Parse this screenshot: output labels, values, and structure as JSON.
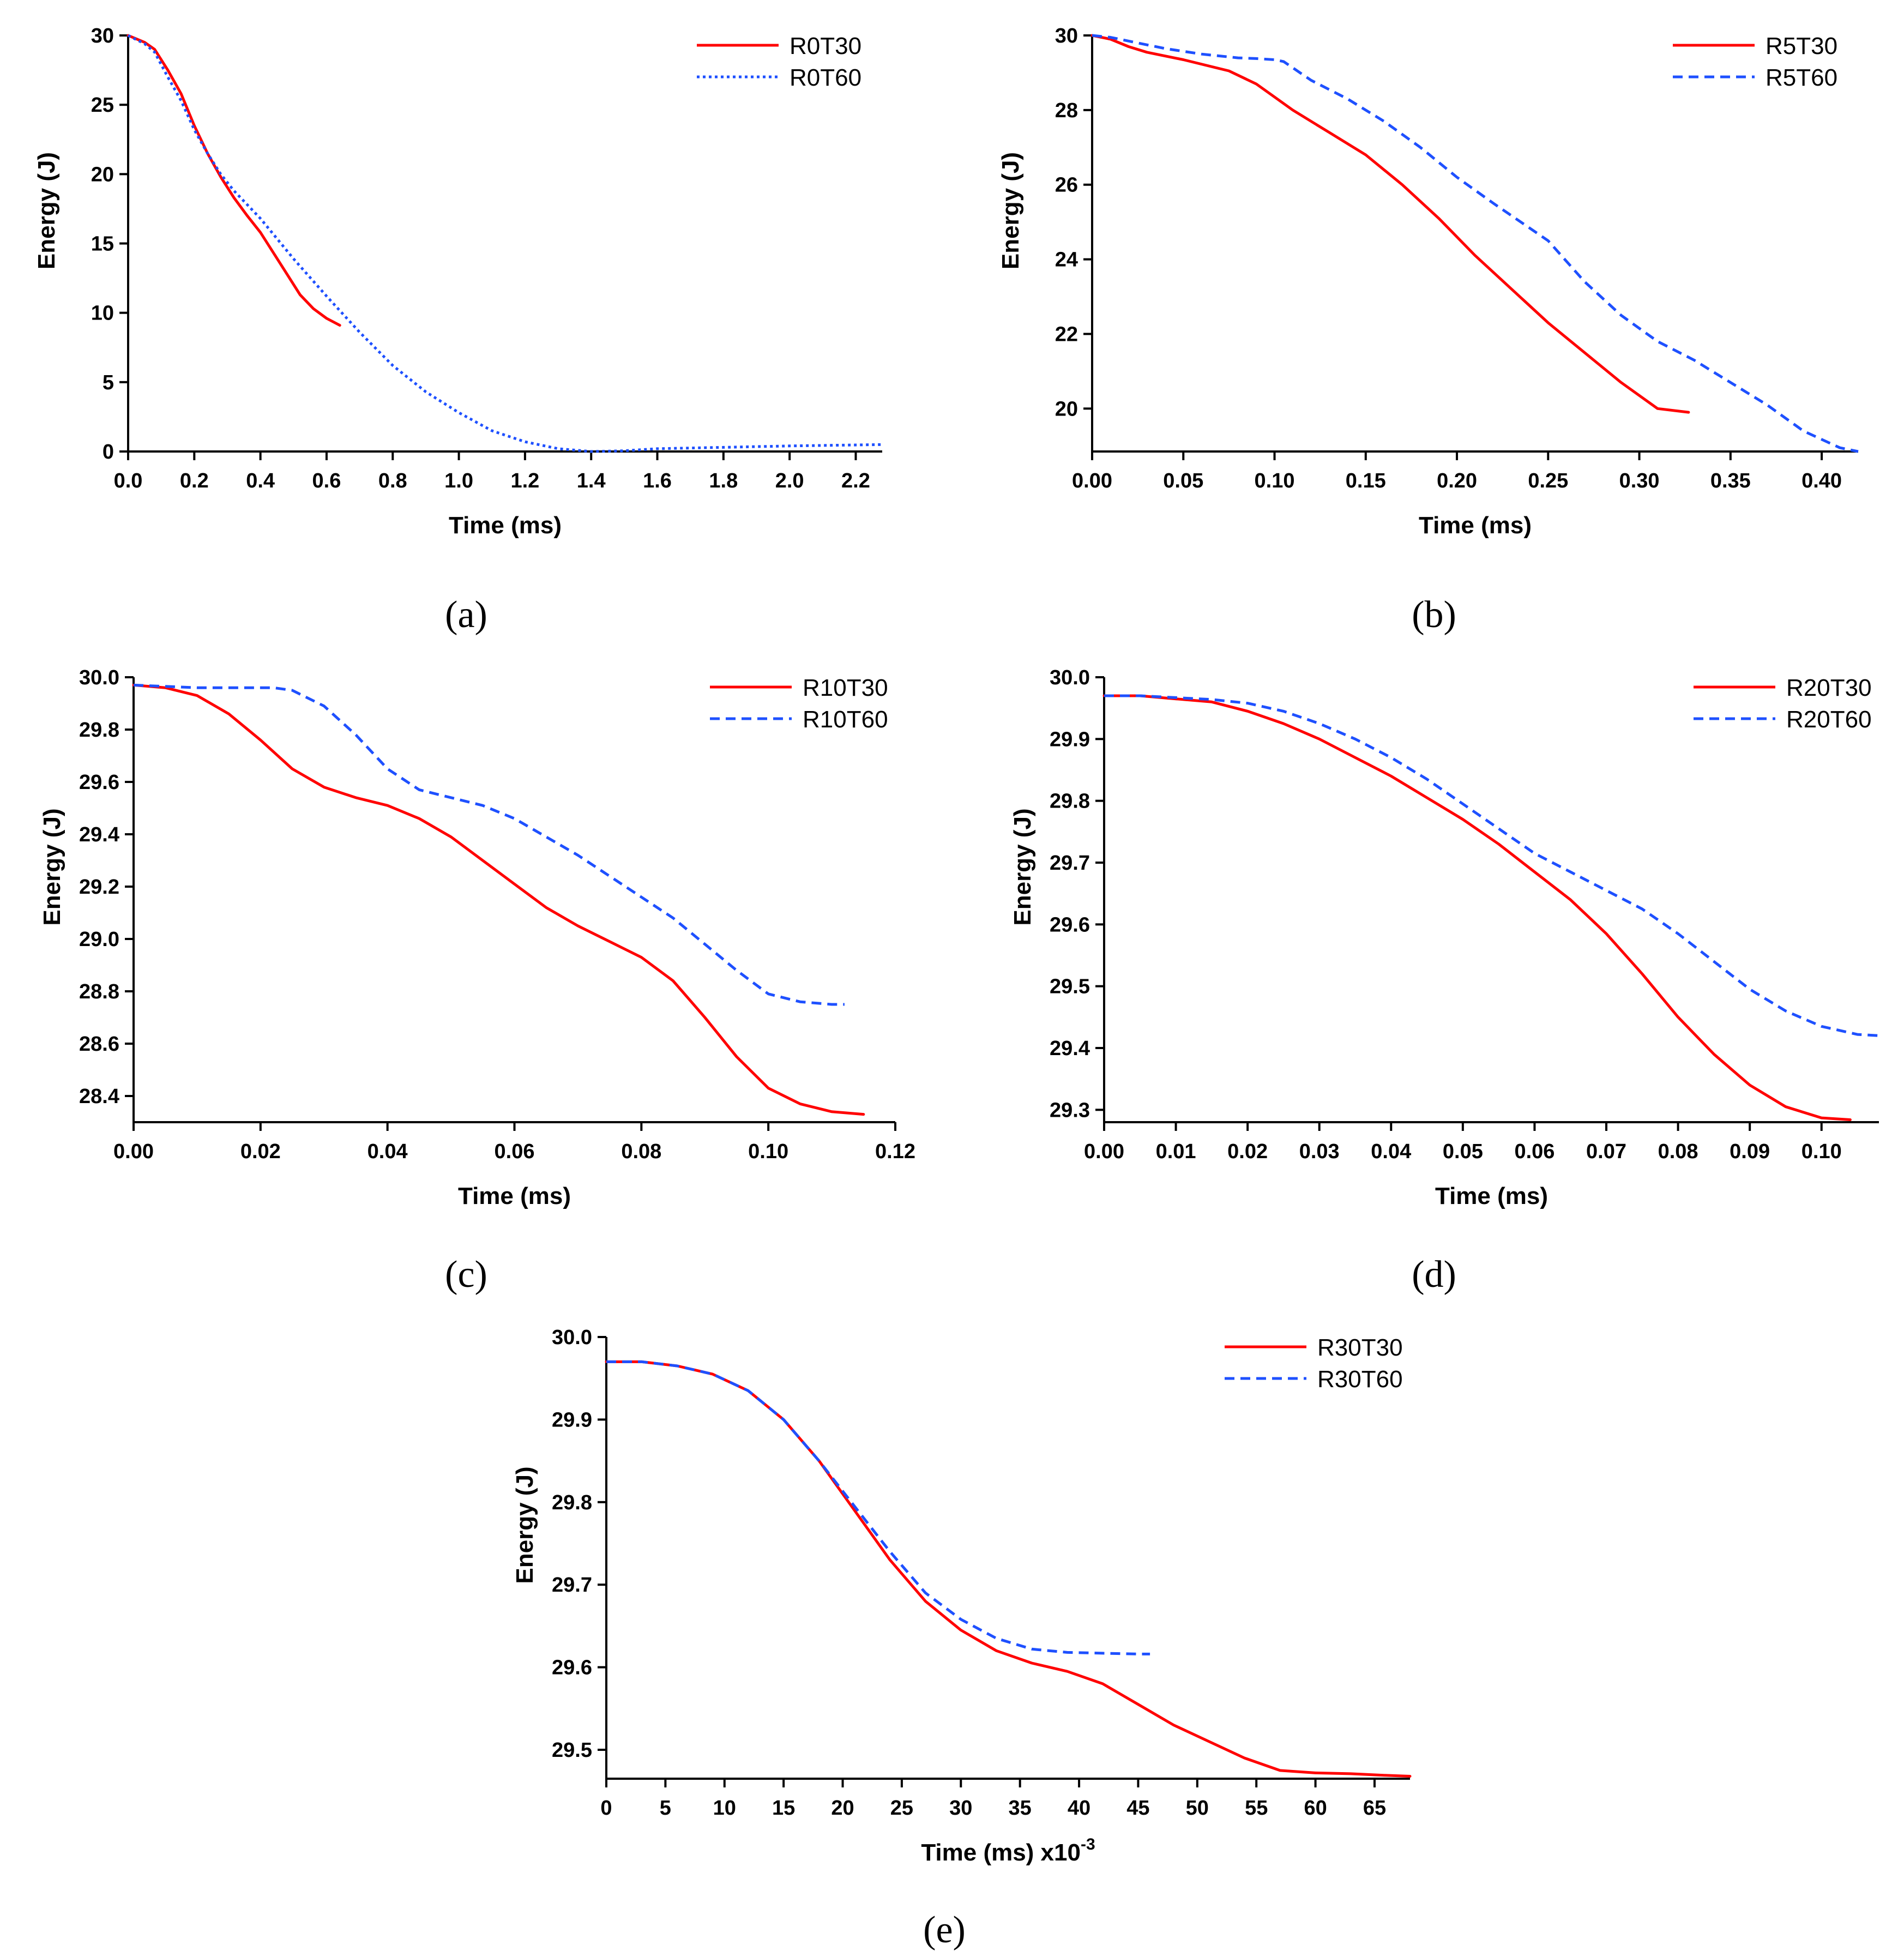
{
  "chart_data": [
    {
      "type": "line",
      "panel_label": "(a)",
      "xlabel": "Time (ms)",
      "ylabel": "Energy (J)",
      "xlim": [
        0,
        2.28
      ],
      "ylim": [
        0,
        30
      ],
      "xticks": [
        "0.0",
        "0.2",
        "0.4",
        "0.6",
        "0.8",
        "1.0",
        "1.2",
        "1.4",
        "1.6",
        "1.8",
        "2.0",
        "2.2"
      ],
      "xtick_values": [
        0,
        0.2,
        0.4,
        0.6,
        0.8,
        1.0,
        1.2,
        1.4,
        1.6,
        1.8,
        2.0,
        2.2
      ],
      "yticks": [
        "0",
        "5",
        "10",
        "15",
        "20",
        "25",
        "30"
      ],
      "ytick_values": [
        0,
        5,
        10,
        15,
        20,
        25,
        30
      ],
      "legend_position": "top-right",
      "series": [
        {
          "name": "R0T30",
          "color": "#ff0000",
          "dash": "solid",
          "x": [
            0,
            0.05,
            0.08,
            0.12,
            0.16,
            0.2,
            0.24,
            0.28,
            0.32,
            0.36,
            0.4,
            0.44,
            0.48,
            0.52,
            0.56,
            0.6,
            0.64
          ],
          "y": [
            30,
            29.5,
            29,
            27.5,
            25.8,
            23.5,
            21.5,
            19.8,
            18.3,
            17,
            15.8,
            14.3,
            12.8,
            11.3,
            10.3,
            9.6,
            9.1
          ]
        },
        {
          "name": "R0T60",
          "color": "#1e50ff",
          "dash": "dotted",
          "x": [
            0,
            0.05,
            0.08,
            0.12,
            0.16,
            0.2,
            0.24,
            0.28,
            0.32,
            0.36,
            0.4,
            0.5,
            0.6,
            0.7,
            0.8,
            0.9,
            1.0,
            1.1,
            1.2,
            1.3,
            1.4,
            1.5,
            1.6,
            1.8,
            2.0,
            2.28
          ],
          "y": [
            30,
            29.4,
            28.8,
            27,
            25.3,
            23.2,
            21.5,
            20,
            18.8,
            17.8,
            16.8,
            13.9,
            11.2,
            8.6,
            6.2,
            4.3,
            2.8,
            1.5,
            0.7,
            0.2,
            0,
            0.05,
            0.2,
            0.3,
            0.4,
            0.5
          ]
        }
      ]
    },
    {
      "type": "line",
      "panel_label": "(b)",
      "xlabel": "Time (ms)",
      "ylabel": "Energy (J)",
      "xlim": [
        0,
        0.42
      ],
      "ylim": [
        18.85,
        30
      ],
      "xticks": [
        "0.00",
        "0.05",
        "0.10",
        "0.15",
        "0.20",
        "0.25",
        "0.30",
        "0.35",
        "0.40"
      ],
      "xtick_values": [
        0,
        0.05,
        0.1,
        0.15,
        0.2,
        0.25,
        0.3,
        0.35,
        0.4
      ],
      "yticks": [
        "20",
        "22",
        "24",
        "26",
        "28",
        "30"
      ],
      "ytick_values": [
        20,
        22,
        24,
        26,
        28,
        30
      ],
      "legend_position": "top-right",
      "series": [
        {
          "name": "R5T30",
          "color": "#ff0000",
          "dash": "solid",
          "x": [
            0,
            0.01,
            0.02,
            0.03,
            0.05,
            0.075,
            0.09,
            0.1,
            0.11,
            0.13,
            0.15,
            0.17,
            0.19,
            0.21,
            0.23,
            0.25,
            0.27,
            0.29,
            0.31,
            0.327
          ],
          "y": [
            30,
            29.9,
            29.7,
            29.55,
            29.35,
            29.05,
            28.7,
            28.35,
            28,
            27.4,
            26.8,
            26,
            25.1,
            24.1,
            23.2,
            22.3,
            21.5,
            20.7,
            20,
            19.9
          ]
        },
        {
          "name": "R5T60",
          "color": "#1e50ff",
          "dash": "dashed",
          "x": [
            0,
            0.01,
            0.02,
            0.04,
            0.06,
            0.08,
            0.09,
            0.1,
            0.105,
            0.12,
            0.14,
            0.16,
            0.18,
            0.2,
            0.22,
            0.25,
            0.27,
            0.29,
            0.31,
            0.33,
            0.35,
            0.37,
            0.39,
            0.41,
            0.42
          ],
          "y": [
            30,
            29.95,
            29.85,
            29.65,
            29.5,
            29.4,
            29.38,
            29.35,
            29.3,
            28.8,
            28.3,
            27.7,
            27,
            26.2,
            25.5,
            24.5,
            23.4,
            22.5,
            21.8,
            21.3,
            20.7,
            20.1,
            19.4,
            18.95,
            18.85
          ]
        }
      ]
    },
    {
      "type": "line",
      "panel_label": "(c)",
      "xlabel": "Time (ms)",
      "ylabel": "Energy (J)",
      "xlim": [
        0,
        0.12
      ],
      "ylim": [
        28.3,
        30
      ],
      "xticks": [
        "0.00",
        "0.02",
        "0.04",
        "0.06",
        "0.08",
        "0.10",
        "0.12"
      ],
      "xtick_values": [
        0,
        0.02,
        0.04,
        0.06,
        0.08,
        0.1,
        0.12
      ],
      "yticks": [
        "28.4",
        "28.6",
        "28.8",
        "29.0",
        "29.2",
        "29.4",
        "29.6",
        "29.8",
        "30.0"
      ],
      "ytick_values": [
        28.4,
        28.6,
        28.8,
        29.0,
        29.2,
        29.4,
        29.6,
        29.8,
        30.0
      ],
      "legend_position": "top-right",
      "series": [
        {
          "name": "R10T30",
          "color": "#ff0000",
          "dash": "solid",
          "x": [
            0,
            0.005,
            0.01,
            0.015,
            0.02,
            0.025,
            0.03,
            0.035,
            0.04,
            0.045,
            0.05,
            0.055,
            0.06,
            0.065,
            0.07,
            0.075,
            0.08,
            0.085,
            0.09,
            0.095,
            0.1,
            0.105,
            0.11,
            0.115
          ],
          "y": [
            29.97,
            29.96,
            29.93,
            29.86,
            29.76,
            29.65,
            29.58,
            29.54,
            29.51,
            29.46,
            29.39,
            29.3,
            29.21,
            29.12,
            29.05,
            28.99,
            28.93,
            28.84,
            28.7,
            28.55,
            28.43,
            28.37,
            28.34,
            28.33
          ]
        },
        {
          "name": "R10T60",
          "color": "#1e50ff",
          "dash": "dashed",
          "x": [
            0,
            0.01,
            0.015,
            0.02,
            0.022,
            0.025,
            0.03,
            0.035,
            0.04,
            0.045,
            0.05,
            0.055,
            0.06,
            0.065,
            0.07,
            0.075,
            0.08,
            0.085,
            0.09,
            0.095,
            0.1,
            0.105,
            0.11,
            0.112
          ],
          "y": [
            29.97,
            29.96,
            29.96,
            29.96,
            29.96,
            29.95,
            29.89,
            29.78,
            29.65,
            29.57,
            29.54,
            29.51,
            29.46,
            29.39,
            29.32,
            29.24,
            29.16,
            29.08,
            28.98,
            28.88,
            28.79,
            28.76,
            28.75,
            28.75
          ]
        }
      ]
    },
    {
      "type": "line",
      "panel_label": "(d)",
      "xlabel": "Time (ms)",
      "ylabel": "Energy (J)",
      "xlim": [
        0,
        0.108
      ],
      "ylim": [
        29.28,
        30
      ],
      "xticks": [
        "0.00",
        "0.01",
        "0.02",
        "0.03",
        "0.04",
        "0.05",
        "0.06",
        "0.07",
        "0.08",
        "0.09",
        "0.10"
      ],
      "xtick_values": [
        0,
        0.01,
        0.02,
        0.03,
        0.04,
        0.05,
        0.06,
        0.07,
        0.08,
        0.09,
        0.1
      ],
      "yticks": [
        "29.3",
        "29.4",
        "29.5",
        "29.6",
        "29.7",
        "29.8",
        "29.9",
        "30.0"
      ],
      "ytick_values": [
        29.3,
        29.4,
        29.5,
        29.6,
        29.7,
        29.8,
        29.9,
        30.0
      ],
      "legend_position": "top-right",
      "series": [
        {
          "name": "R20T30",
          "color": "#ff0000",
          "dash": "solid",
          "x": [
            0,
            0.005,
            0.01,
            0.015,
            0.02,
            0.025,
            0.03,
            0.035,
            0.04,
            0.045,
            0.05,
            0.055,
            0.06,
            0.065,
            0.07,
            0.075,
            0.08,
            0.085,
            0.09,
            0.095,
            0.1,
            0.104
          ],
          "y": [
            29.97,
            29.97,
            29.965,
            29.96,
            29.945,
            29.925,
            29.9,
            29.87,
            29.84,
            29.805,
            29.77,
            29.73,
            29.685,
            29.64,
            29.585,
            29.52,
            29.45,
            29.39,
            29.34,
            29.305,
            29.287,
            29.284
          ]
        },
        {
          "name": "R20T60",
          "color": "#1e50ff",
          "dash": "dashed",
          "x": [
            0,
            0.005,
            0.01,
            0.015,
            0.02,
            0.025,
            0.03,
            0.035,
            0.04,
            0.045,
            0.05,
            0.055,
            0.06,
            0.065,
            0.07,
            0.075,
            0.08,
            0.085,
            0.09,
            0.095,
            0.1,
            0.105,
            0.108
          ],
          "y": [
            29.97,
            29.97,
            29.967,
            29.964,
            29.958,
            29.945,
            29.925,
            29.9,
            29.87,
            29.835,
            29.795,
            29.755,
            29.715,
            29.685,
            29.655,
            29.625,
            29.585,
            29.54,
            29.495,
            29.46,
            29.435,
            29.422,
            29.42
          ]
        }
      ]
    },
    {
      "type": "line",
      "panel_label": "(e)",
      "xlabel": "Time (ms) x10",
      "xlabel_exponent": "-3",
      "ylabel": "Energy (J)",
      "xlim": [
        0,
        68
      ],
      "ylim": [
        29.465,
        30
      ],
      "xticks": [
        "0",
        "5",
        "10",
        "15",
        "20",
        "25",
        "30",
        "35",
        "40",
        "45",
        "50",
        "55",
        "60",
        "65"
      ],
      "xtick_values": [
        0,
        5,
        10,
        15,
        20,
        25,
        30,
        35,
        40,
        45,
        50,
        55,
        60,
        65
      ],
      "yticks": [
        "29.5",
        "29.6",
        "29.7",
        "29.8",
        "29.9",
        "30.0"
      ],
      "ytick_values": [
        29.5,
        29.6,
        29.7,
        29.8,
        29.9,
        30.0
      ],
      "legend_position": "top-right",
      "series": [
        {
          "name": "R30T30",
          "color": "#ff0000",
          "dash": "solid",
          "x": [
            0,
            3,
            6,
            9,
            12,
            15,
            18,
            21,
            24,
            27,
            30,
            33,
            36,
            39,
            42,
            45,
            48,
            51,
            54,
            57,
            60,
            63,
            66,
            68
          ],
          "y": [
            29.97,
            29.97,
            29.965,
            29.955,
            29.935,
            29.9,
            29.85,
            29.79,
            29.73,
            29.68,
            29.645,
            29.62,
            29.605,
            29.595,
            29.58,
            29.555,
            29.53,
            29.51,
            29.49,
            29.475,
            29.472,
            29.471,
            29.469,
            29.468
          ]
        },
        {
          "name": "R30T60",
          "color": "#1e50ff",
          "dash": "dashed",
          "x": [
            0,
            3,
            6,
            9,
            12,
            15,
            18,
            21,
            24,
            27,
            30,
            33,
            36,
            39,
            42,
            45,
            46
          ],
          "y": [
            29.97,
            29.97,
            29.965,
            29.955,
            29.935,
            29.9,
            29.85,
            29.795,
            29.74,
            29.69,
            29.658,
            29.635,
            29.622,
            29.618,
            29.617,
            29.616,
            29.616
          ]
        }
      ]
    }
  ]
}
